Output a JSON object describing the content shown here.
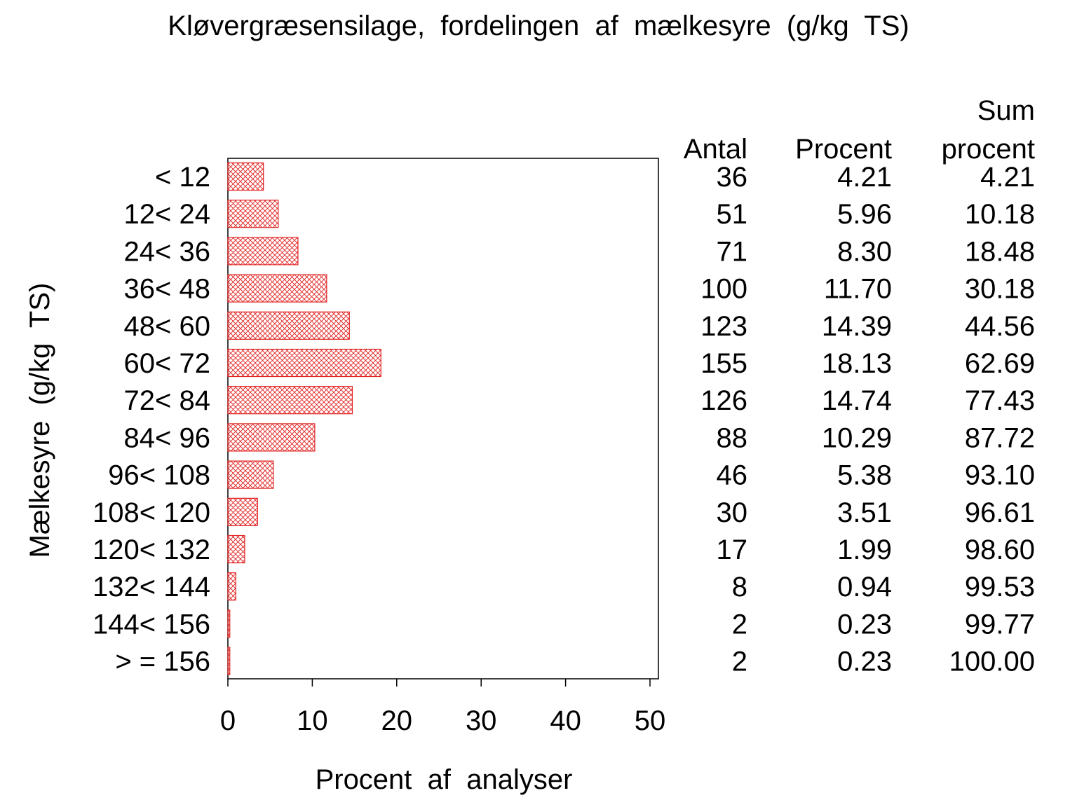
{
  "chart_data": {
    "type": "bar",
    "orientation": "horizontal",
    "title": "Kløvergræsensilage,  fordelingen  af  mælkesyre  (g/kg  TS)",
    "xlabel": "Procent  af  analyser",
    "ylabel": "Mælkesyre  (g/kg  TS)",
    "xlim": [
      0,
      50
    ],
    "xticks": [
      "0",
      "10",
      "20",
      "30",
      "40",
      "50"
    ],
    "grid": false,
    "bar_fill": "crosshatch",
    "bar_color": "#e0201f",
    "categories": [
      "< 12",
      "12< 24",
      "24< 36",
      "36< 48",
      "48< 60",
      "60< 72",
      "72< 84",
      "84< 96",
      "96< 108",
      "108< 120",
      "120< 132",
      "132< 144",
      "144< 156",
      "> = 156"
    ],
    "values": [
      4.21,
      5.96,
      8.3,
      11.7,
      14.39,
      18.13,
      14.74,
      10.29,
      5.38,
      3.51,
      1.99,
      0.94,
      0.23,
      0.23
    ],
    "table": {
      "headers": {
        "antal": "Antal",
        "procent": "Procent",
        "sum_line1": "Sum",
        "sum_line2": "procent"
      },
      "antal": [
        "36",
        "51",
        "71",
        "100",
        "123",
        "155",
        "126",
        "88",
        "46",
        "30",
        "17",
        "8",
        "2",
        "2"
      ],
      "procent": [
        "4.21",
        "5.96",
        "8.30",
        "11.70",
        "14.39",
        "18.13",
        "14.74",
        "10.29",
        "5.38",
        "3.51",
        "1.99",
        "0.94",
        "0.23",
        "0.23"
      ],
      "sum_procent": [
        "4.21",
        "10.18",
        "18.48",
        "30.18",
        "44.56",
        "62.69",
        "77.43",
        "87.72",
        "93.10",
        "96.61",
        "98.60",
        "99.53",
        "99.77",
        "100.00"
      ]
    }
  }
}
